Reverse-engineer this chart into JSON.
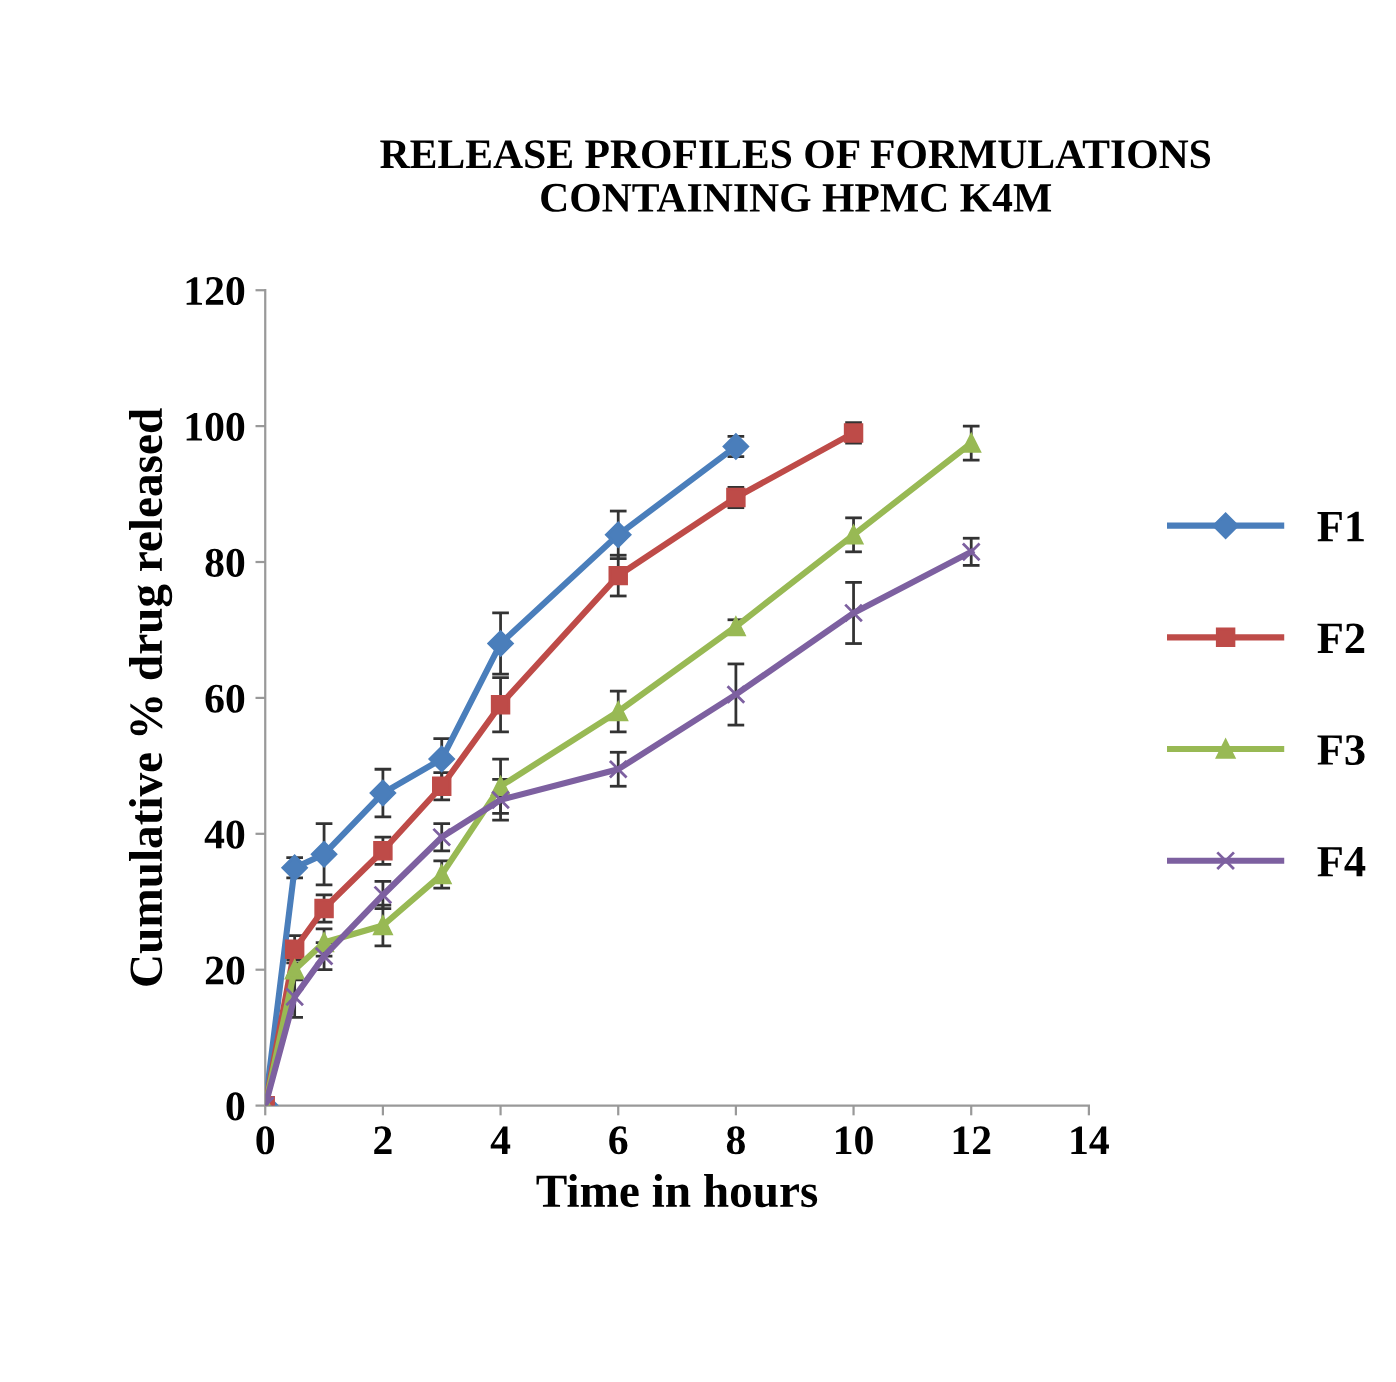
{
  "chart_data": {
    "type": "line",
    "title": "RELEASE PROFILES OF FORMULATIONS\nCONTAINING HPMC K4M",
    "xlabel": "Time in hours",
    "ylabel": "Cumulative % drug released",
    "xlim": [
      0,
      14
    ],
    "xticks": [
      0,
      2,
      4,
      6,
      8,
      10,
      12,
      14
    ],
    "ylim": [
      0,
      120
    ],
    "yticks": [
      0,
      20,
      40,
      60,
      80,
      100,
      120
    ],
    "grid": false,
    "legend": "right",
    "series": [
      {
        "name": "F1",
        "color": "#4a7ebb",
        "marker": "diamond",
        "x": [
          0,
          0.5,
          1,
          2,
          3,
          4,
          6,
          8
        ],
        "values": [
          0,
          35,
          37,
          46,
          51,
          68,
          84,
          97
        ],
        "errors": [
          0,
          1.5,
          4.5,
          3.5,
          3,
          4.5,
          3.5,
          1.5
        ]
      },
      {
        "name": "F2",
        "color": "#be4b48",
        "marker": "square",
        "x": [
          0,
          0.5,
          1,
          2,
          3,
          4,
          6,
          8,
          10
        ],
        "values": [
          0,
          23,
          29,
          37.5,
          47,
          59,
          78,
          89.5,
          99
        ],
        "errors": [
          0,
          2,
          2,
          2,
          2,
          4,
          3,
          1.5,
          1.5
        ]
      },
      {
        "name": "F3",
        "color": "#98b954",
        "marker": "triangle",
        "x": [
          0,
          0.5,
          1,
          2,
          3,
          4,
          6,
          8,
          10,
          12
        ],
        "values": [
          0,
          20,
          24,
          26.5,
          34,
          47,
          58,
          70.5,
          84,
          97.5
        ],
        "errors": [
          0,
          1.5,
          2,
          3,
          2,
          4,
          3,
          1,
          2.5,
          2.5
        ]
      },
      {
        "name": "F4",
        "color": "#7d60a0",
        "marker": "cross",
        "x": [
          0,
          0.5,
          1,
          2,
          3,
          4,
          6,
          8,
          10,
          12
        ],
        "values": [
          0,
          16,
          22,
          31,
          39.5,
          45,
          49.5,
          60.5,
          72.5,
          81.5
        ],
        "errors": [
          0,
          3,
          2,
          2,
          2,
          3,
          2.5,
          4.5,
          4.5,
          2
        ]
      }
    ]
  }
}
